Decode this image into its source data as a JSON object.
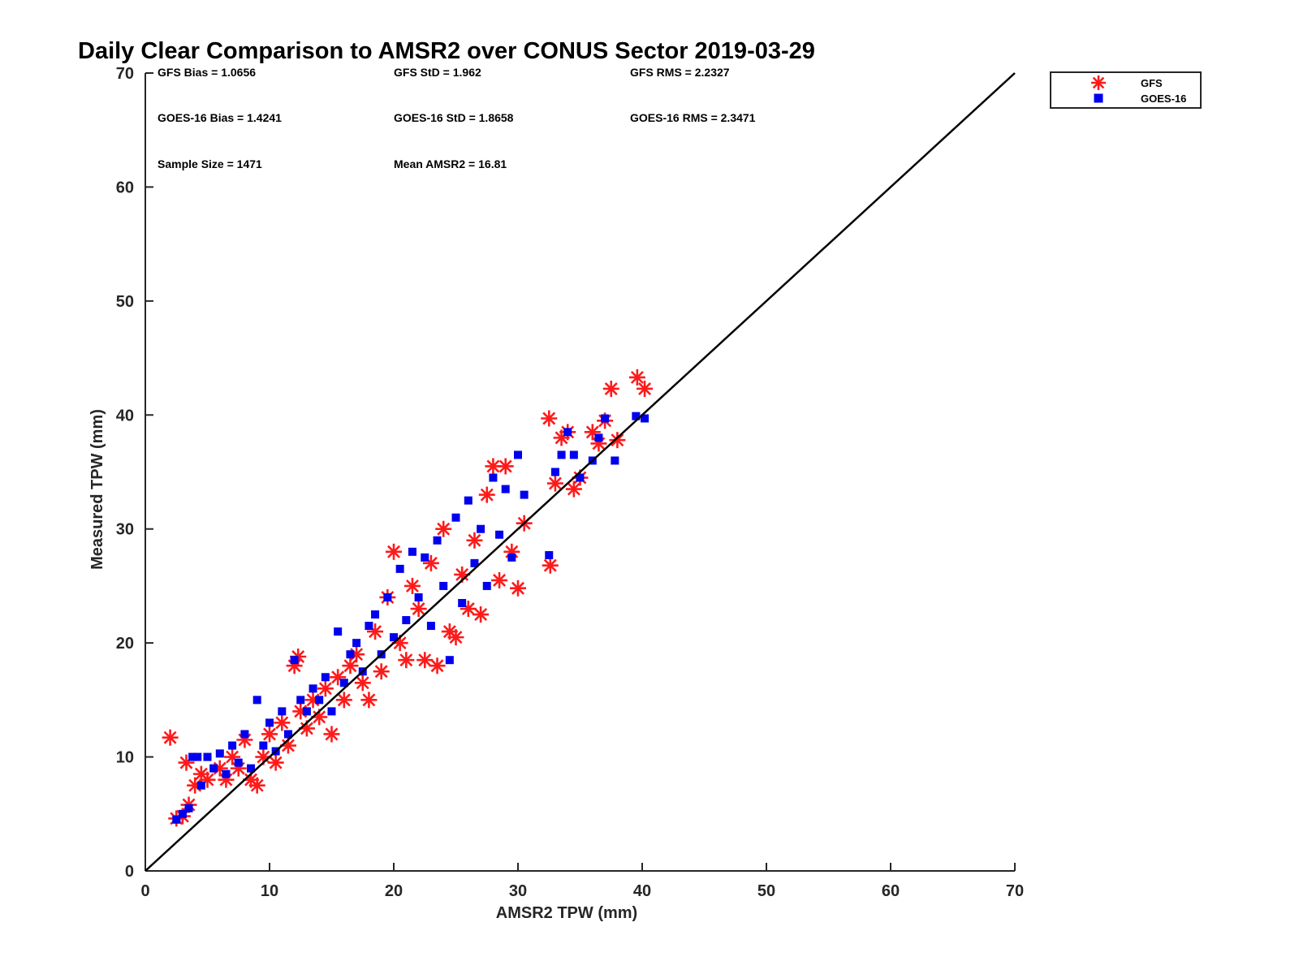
{
  "chart_data": {
    "type": "scatter",
    "title": "Daily Clear Comparison to AMSR2 over CONUS Sector 2019-03-29",
    "xlabel": "AMSR2 TPW (mm)",
    "ylabel": "Measured TPW (mm)",
    "xlim": [
      0,
      70
    ],
    "ylim": [
      0,
      70
    ],
    "xticks": [
      "0",
      "10",
      "20",
      "30",
      "40",
      "50",
      "60",
      "70"
    ],
    "yticks": [
      "0",
      "10",
      "20",
      "30",
      "40",
      "50",
      "60",
      "70"
    ],
    "legend_position": "top-right, outside plot",
    "reference_line": {
      "from": [
        0,
        0
      ],
      "to": [
        70,
        70
      ],
      "color": "#000000"
    },
    "stats": [
      [
        "GFS Bias = 1.0656",
        "GFS StD = 1.962",
        "GFS RMS = 2.2327"
      ],
      [
        "GOES-16 Bias = 1.4241",
        "GOES-16 StD = 1.8658",
        "GOES-16 RMS = 2.3471"
      ],
      [
        "Sample Size = 1471",
        "Mean AMSR2 = 16.81"
      ]
    ],
    "series": [
      {
        "name": "GFS",
        "marker": "asterisk",
        "color": "#ff1a1a",
        "points": [
          [
            2.0,
            11.7
          ],
          [
            2.5,
            4.6
          ],
          [
            3.0,
            4.8
          ],
          [
            3.3,
            9.5
          ],
          [
            3.5,
            5.8
          ],
          [
            4.0,
            7.5
          ],
          [
            4.5,
            8.5
          ],
          [
            5.0,
            8.0
          ],
          [
            6.0,
            9.0
          ],
          [
            6.5,
            8.0
          ],
          [
            7.0,
            10.0
          ],
          [
            7.5,
            9.0
          ],
          [
            8.0,
            11.5
          ],
          [
            8.5,
            8.0
          ],
          [
            9.0,
            7.5
          ],
          [
            9.5,
            10.0
          ],
          [
            10.0,
            12.0
          ],
          [
            10.5,
            9.5
          ],
          [
            11.0,
            13.0
          ],
          [
            11.5,
            11.0
          ],
          [
            12.0,
            18.0
          ],
          [
            12.3,
            18.8
          ],
          [
            12.5,
            14.0
          ],
          [
            13.0,
            12.5
          ],
          [
            13.5,
            15.0
          ],
          [
            14.0,
            13.5
          ],
          [
            14.5,
            16.0
          ],
          [
            15.0,
            12.0
          ],
          [
            15.5,
            17.0
          ],
          [
            16.0,
            15.0
          ],
          [
            16.5,
            18.0
          ],
          [
            17.0,
            19.0
          ],
          [
            17.5,
            16.5
          ],
          [
            18.0,
            15.0
          ],
          [
            18.5,
            21.0
          ],
          [
            19.0,
            17.5
          ],
          [
            19.5,
            24.0
          ],
          [
            20.0,
            28.0
          ],
          [
            20.5,
            20.0
          ],
          [
            21.0,
            18.5
          ],
          [
            21.5,
            25.0
          ],
          [
            22.0,
            23.0
          ],
          [
            22.5,
            18.5
          ],
          [
            23.0,
            27.0
          ],
          [
            23.5,
            18.0
          ],
          [
            24.0,
            30.0
          ],
          [
            24.5,
            21.0
          ],
          [
            25.0,
            20.5
          ],
          [
            25.5,
            26.0
          ],
          [
            26.0,
            23.0
          ],
          [
            26.5,
            29.0
          ],
          [
            27.0,
            22.5
          ],
          [
            27.5,
            33.0
          ],
          [
            28.0,
            35.5
          ],
          [
            28.5,
            25.5
          ],
          [
            29.0,
            35.5
          ],
          [
            29.5,
            28.0
          ],
          [
            30.0,
            24.8
          ],
          [
            30.5,
            30.5
          ],
          [
            32.5,
            39.7
          ],
          [
            32.6,
            26.8
          ],
          [
            33.0,
            34.0
          ],
          [
            33.5,
            38.0
          ],
          [
            34.0,
            38.5
          ],
          [
            34.5,
            33.5
          ],
          [
            35.0,
            34.5
          ],
          [
            36.0,
            38.5
          ],
          [
            36.5,
            37.5
          ],
          [
            37.0,
            39.5
          ],
          [
            37.5,
            42.3
          ],
          [
            38.0,
            37.8
          ],
          [
            39.6,
            43.3
          ],
          [
            40.2,
            42.3
          ]
        ]
      },
      {
        "name": "GOES-16",
        "marker": "square",
        "color": "#0000ee",
        "points": [
          [
            2.5,
            4.5
          ],
          [
            3.0,
            5.0
          ],
          [
            3.5,
            5.5
          ],
          [
            3.8,
            10.0
          ],
          [
            4.2,
            10.0
          ],
          [
            4.5,
            7.5
          ],
          [
            5.0,
            10.0
          ],
          [
            5.5,
            9.0
          ],
          [
            6.0,
            10.3
          ],
          [
            6.5,
            8.5
          ],
          [
            7.0,
            11.0
          ],
          [
            7.5,
            9.5
          ],
          [
            8.0,
            12.0
          ],
          [
            8.5,
            9.0
          ],
          [
            9.0,
            15.0
          ],
          [
            9.5,
            11.0
          ],
          [
            10.0,
            13.0
          ],
          [
            10.5,
            10.5
          ],
          [
            11.0,
            14.0
          ],
          [
            11.5,
            12.0
          ],
          [
            12.0,
            18.5
          ],
          [
            12.5,
            15.0
          ],
          [
            13.0,
            14.0
          ],
          [
            13.5,
            16.0
          ],
          [
            14.0,
            15.0
          ],
          [
            14.5,
            17.0
          ],
          [
            15.0,
            14.0
          ],
          [
            15.5,
            21.0
          ],
          [
            16.0,
            16.5
          ],
          [
            16.5,
            19.0
          ],
          [
            17.0,
            20.0
          ],
          [
            17.5,
            17.5
          ],
          [
            18.0,
            21.5
          ],
          [
            18.5,
            22.5
          ],
          [
            19.0,
            19.0
          ],
          [
            19.5,
            24.0
          ],
          [
            20.0,
            20.5
          ],
          [
            20.5,
            26.5
          ],
          [
            21.0,
            22.0
          ],
          [
            21.5,
            28.0
          ],
          [
            22.0,
            24.0
          ],
          [
            22.5,
            27.5
          ],
          [
            23.0,
            21.5
          ],
          [
            23.5,
            29.0
          ],
          [
            24.0,
            25.0
          ],
          [
            24.5,
            18.5
          ],
          [
            25.0,
            31.0
          ],
          [
            25.5,
            23.5
          ],
          [
            26.0,
            32.5
          ],
          [
            26.5,
            27.0
          ],
          [
            27.0,
            30.0
          ],
          [
            27.5,
            25.0
          ],
          [
            28.0,
            34.5
          ],
          [
            28.5,
            29.5
          ],
          [
            29.0,
            33.5
          ],
          [
            29.5,
            27.5
          ],
          [
            30.0,
            36.5
          ],
          [
            30.5,
            33.0
          ],
          [
            32.5,
            27.7
          ],
          [
            33.0,
            35.0
          ],
          [
            33.5,
            36.5
          ],
          [
            34.0,
            38.5
          ],
          [
            34.5,
            36.5
          ],
          [
            35.0,
            34.5
          ],
          [
            36.0,
            36.0
          ],
          [
            36.5,
            38.0
          ],
          [
            37.0,
            39.7
          ],
          [
            37.8,
            36.0
          ],
          [
            39.5,
            39.9
          ],
          [
            40.2,
            39.7
          ]
        ]
      }
    ]
  }
}
